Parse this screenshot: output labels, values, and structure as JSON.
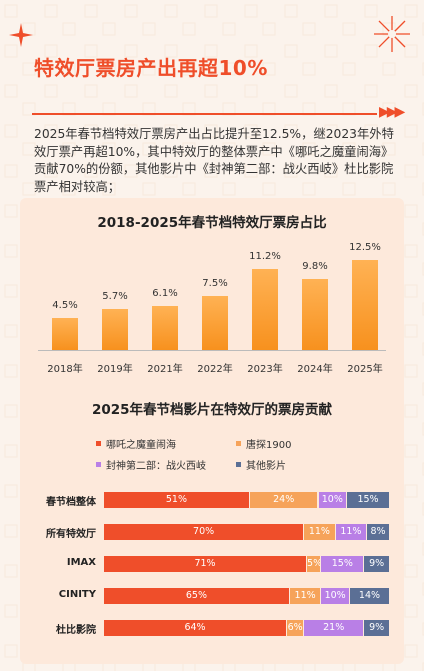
{
  "header": {
    "title": "特效厅票房产出再超10%",
    "summary": "2025年春节档特效厅票房产出占比提升至12.5%，继2023年外特效厅票产再超10%，其中特效厅的整体票产中《哪吒之魔童闹海》贡献70%的份额，其他影片中《封神第二部：战火西岐》杜比影院票产相对较高；",
    "arrows": "▶▶▶"
  },
  "colors": {
    "accent": "#ef4e2a",
    "bar": "#f7911e",
    "series": [
      "#ef4e2a",
      "#f6a35a",
      "#b97fe6",
      "#5b6f95"
    ]
  },
  "chart_data": [
    {
      "type": "bar",
      "title": "2018-2025年春节档特效厅票房占比",
      "categories": [
        "2018年",
        "2019年",
        "2021年",
        "2022年",
        "2023年",
        "2024年",
        "2025年"
      ],
      "values": [
        4.5,
        5.7,
        6.1,
        7.5,
        11.2,
        9.8,
        12.5
      ],
      "data_labels": [
        "4.5%",
        "5.7%",
        "6.1%",
        "7.5%",
        "11.2%",
        "9.8%",
        "12.5%"
      ],
      "ylim": [
        0,
        14
      ]
    },
    {
      "type": "bar",
      "stacked": true,
      "orientation": "horizontal",
      "title": "2025年春节档影片在特效厅的票房贡献",
      "categories": [
        "春节档整体",
        "所有特效厅",
        "IMAX",
        "CINITY",
        "杜比影院"
      ],
      "legend_position": "top",
      "series": [
        {
          "name": "哪吒之魔童闹海",
          "values": [
            51,
            70,
            71,
            65,
            64
          ],
          "labels": [
            "51%",
            "70%",
            "71%",
            "65%",
            "64%"
          ]
        },
        {
          "name": "唐探1900",
          "values": [
            24,
            11,
            5,
            11,
            6
          ],
          "labels": [
            "24%",
            "11%",
            "5%",
            "11%",
            "6%"
          ]
        },
        {
          "name": "封神第二部：战火西岐",
          "values": [
            10,
            11,
            15,
            10,
            21
          ],
          "labels": [
            "10%",
            "11%",
            "15%",
            "10%",
            "21%"
          ]
        },
        {
          "name": "其他影片",
          "values": [
            15,
            8,
            9,
            14,
            9
          ],
          "labels": [
            "15%",
            "8%",
            "9%",
            "14%",
            "9%"
          ]
        }
      ]
    }
  ]
}
